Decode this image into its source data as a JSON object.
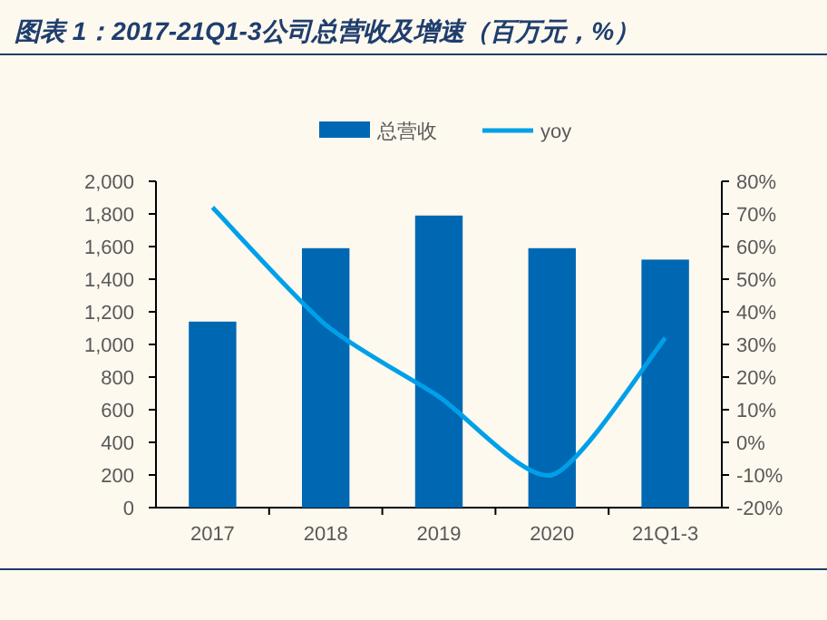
{
  "chart_data": {
    "type": "bar",
    "title": "图表 1：2017-21Q1-3公司总营收及增速（百万元，%）",
    "categories": [
      "2017",
      "2018",
      "2019",
      "2020",
      "21Q1-3"
    ],
    "series": [
      {
        "name": "总营收",
        "color": "#0068b3",
        "values": [
          1140,
          1590,
          1790,
          1590,
          1520
        ]
      },
      {
        "name": "yoy",
        "type": "line",
        "axis": "y2",
        "color": "#00a0e9",
        "values": [
          72,
          36,
          14,
          -10,
          32
        ]
      }
    ],
    "ylim": [
      0,
      2000
    ],
    "yticks": [
      0,
      200,
      400,
      600,
      800,
      {
        "value": 1000,
        "label": "1,000"
      },
      {
        "value": 1200,
        "label": "1,200"
      },
      {
        "value": 1400,
        "label": "1,400"
      },
      {
        "value": 1600,
        "label": "1,600"
      },
      {
        "value": 1800,
        "label": "1,800"
      },
      {
        "value": 2000,
        "label": "2,000"
      }
    ],
    "y2lim": [
      -20,
      80
    ],
    "y2ticks": [
      {
        "value": -20,
        "label": "-20%"
      },
      {
        "value": -10,
        "label": "-10%"
      },
      {
        "value": 0,
        "label": "0%"
      },
      {
        "value": 10,
        "label": "10%"
      },
      {
        "value": 20,
        "label": "20%"
      },
      {
        "value": 30,
        "label": "30%"
      },
      {
        "value": 40,
        "label": "40%"
      },
      {
        "value": 50,
        "label": "50%"
      },
      {
        "value": 60,
        "label": "60%"
      },
      {
        "value": 70,
        "label": "70%"
      },
      {
        "value": 80,
        "label": "80%"
      }
    ],
    "legend": "top",
    "grid": false
  }
}
